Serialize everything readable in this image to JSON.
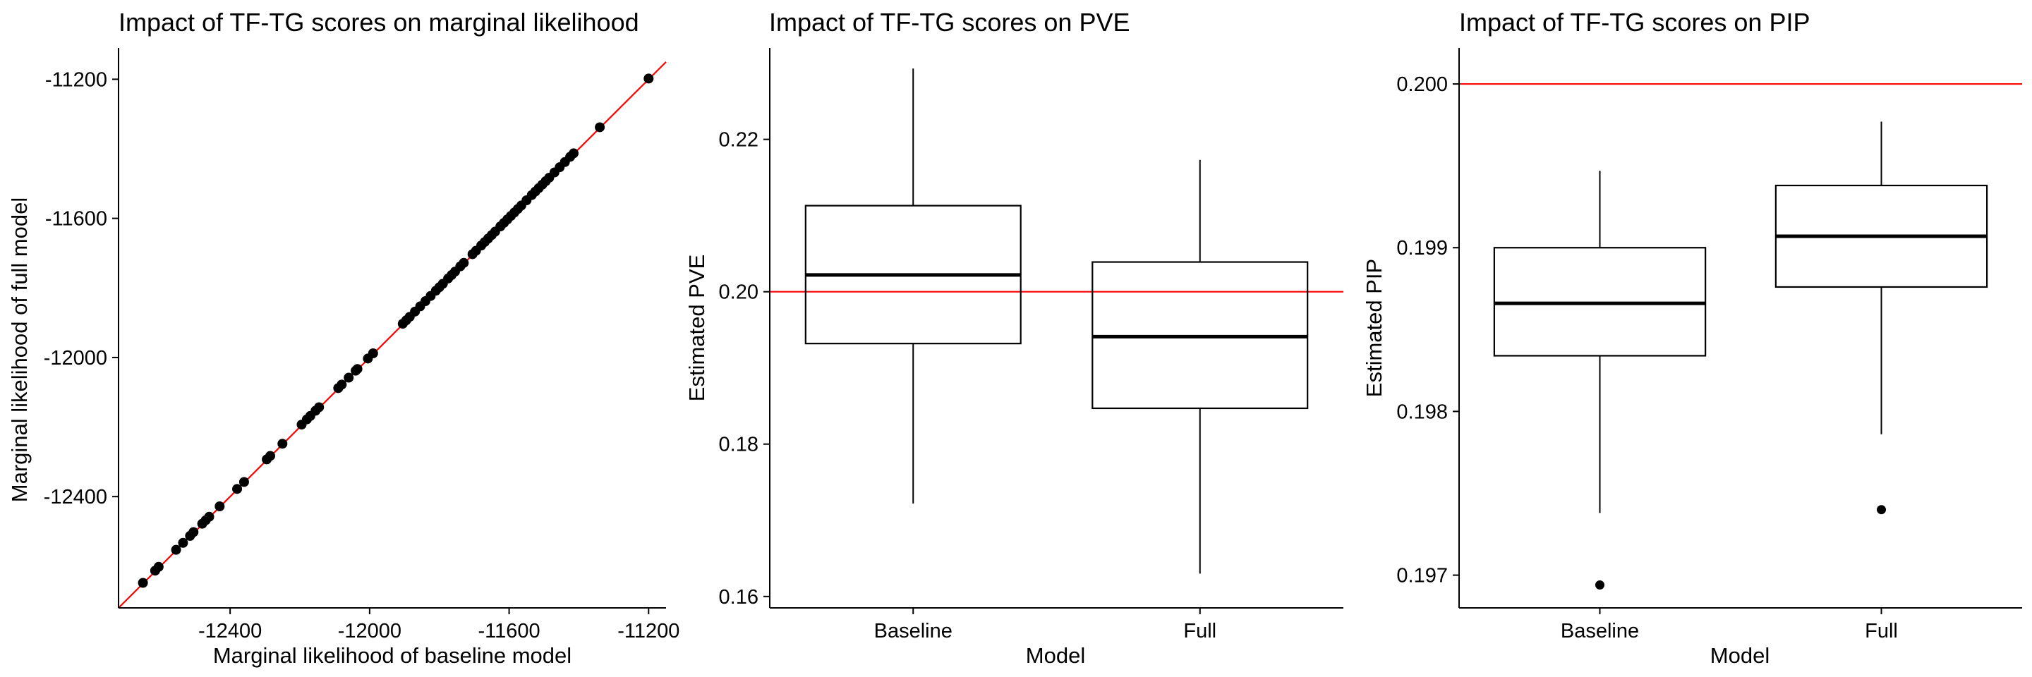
{
  "chart_data": [
    {
      "type": "scatter",
      "title": "Impact of TF-TG scores on marginal likelihood",
      "xlabel": "Marginal likelihood of baseline model",
      "ylabel": "Marginal likelihood of full model",
      "xlim": [
        -12720,
        -11150
      ],
      "ylim": [
        -12720,
        -11110
      ],
      "xticks": [
        -12400,
        -12000,
        -11600,
        -11200
      ],
      "yticks": [
        -12400,
        -12000,
        -11600,
        -11200
      ],
      "xtick_labels": [
        "-12400",
        "-12000",
        "-11600",
        "-11200"
      ],
      "ytick_labels": [
        "-12400",
        "-12000",
        "-11600",
        "-11200"
      ],
      "reference_line": {
        "type": "identity",
        "color": "#ff0000"
      },
      "point_color": "#000000",
      "grid": false,
      "x": [
        -12650,
        -12615,
        -12605,
        -12555,
        -12535,
        -12515,
        -12505,
        -12480,
        -12470,
        -12460,
        -12430,
        -12380,
        -12360,
        -12295,
        -12285,
        -12250,
        -12195,
        -12180,
        -12170,
        -12155,
        -12145,
        -12090,
        -12080,
        -12060,
        -12040,
        -12035,
        -12005,
        -11990,
        -11905,
        -11895,
        -11885,
        -11870,
        -11855,
        -11840,
        -11825,
        -11810,
        -11800,
        -11790,
        -11775,
        -11765,
        -11755,
        -11740,
        -11730,
        -11705,
        -11695,
        -11680,
        -11670,
        -11660,
        -11650,
        -11640,
        -11625,
        -11615,
        -11605,
        -11595,
        -11585,
        -11575,
        -11565,
        -11550,
        -11535,
        -11525,
        -11515,
        -11505,
        -11495,
        -11485,
        -11470,
        -11455,
        -11440,
        -11425,
        -11415,
        -11340,
        -11200
      ],
      "y": [
        -12648,
        -12613,
        -12602,
        -12553,
        -12533,
        -12513,
        -12502,
        -12478,
        -12468,
        -12458,
        -12428,
        -12378,
        -12358,
        -12293,
        -12283,
        -12248,
        -12193,
        -12178,
        -12168,
        -12153,
        -12143,
        -12088,
        -12078,
        -12058,
        -12038,
        -12033,
        -12003,
        -11988,
        -11903,
        -11893,
        -11883,
        -11868,
        -11853,
        -11838,
        -11823,
        -11808,
        -11798,
        -11788,
        -11773,
        -11763,
        -11753,
        -11738,
        -11728,
        -11703,
        -11693,
        -11678,
        -11668,
        -11658,
        -11648,
        -11638,
        -11623,
        -11613,
        -11603,
        -11593,
        -11583,
        -11573,
        -11563,
        -11548,
        -11533,
        -11523,
        -11513,
        -11503,
        -11493,
        -11483,
        -11468,
        -11453,
        -11438,
        -11423,
        -11413,
        -11338,
        -11198
      ]
    },
    {
      "type": "box",
      "title": "Impact of TF-TG scores on PVE",
      "xlabel": "Model",
      "ylabel": "Estimated PVE",
      "categories": [
        "Baseline",
        "Full"
      ],
      "ylim": [
        0.1585,
        0.232
      ],
      "yticks": [
        0.16,
        0.18,
        0.2,
        0.22
      ],
      "ytick_labels": [
        "0.16",
        "0.18",
        "0.20",
        "0.22"
      ],
      "reference_line": {
        "y": 0.2,
        "color": "#ff0000"
      },
      "grid": false,
      "boxes": [
        {
          "name": "Baseline",
          "whisker_low": 0.1722,
          "q1": 0.1932,
          "median": 0.2022,
          "q3": 0.2113,
          "whisker_high": 0.2293,
          "outliers": []
        },
        {
          "name": "Full",
          "whisker_low": 0.163,
          "q1": 0.1847,
          "median": 0.1941,
          "q3": 0.2039,
          "whisker_high": 0.2173,
          "outliers": []
        }
      ]
    },
    {
      "type": "box",
      "title": "Impact of TF-TG scores on PIP",
      "xlabel": "Model",
      "ylabel": "Estimated PIP",
      "categories": [
        "Baseline",
        "Full"
      ],
      "ylim": [
        0.1968,
        0.20022
      ],
      "yticks": [
        0.197,
        0.198,
        0.199,
        0.2
      ],
      "ytick_labels": [
        "0.197",
        "0.198",
        "0.199",
        "0.200"
      ],
      "reference_line": {
        "y": 0.2,
        "color": "#ff0000"
      },
      "grid": false,
      "boxes": [
        {
          "name": "Baseline",
          "whisker_low": 0.19738,
          "q1": 0.19834,
          "median": 0.19866,
          "q3": 0.199,
          "whisker_high": 0.19947,
          "outliers": [
            0.19694
          ]
        },
        {
          "name": "Full",
          "whisker_low": 0.19786,
          "q1": 0.19876,
          "median": 0.19907,
          "q3": 0.19938,
          "whisker_high": 0.19977,
          "outliers": [
            0.1974
          ]
        }
      ]
    }
  ]
}
